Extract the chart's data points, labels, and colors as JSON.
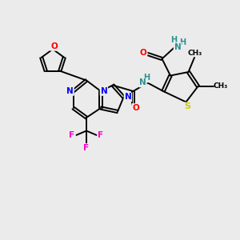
{
  "background_color": "#ebebeb",
  "atom_colors": {
    "N": "#0000ff",
    "O": "#ff0000",
    "S": "#cccc00",
    "F": "#ff00cc",
    "C": "#000000",
    "H": "#2f9090"
  },
  "figsize": [
    3.0,
    3.0
  ],
  "dpi": 100,
  "lw": 1.4
}
